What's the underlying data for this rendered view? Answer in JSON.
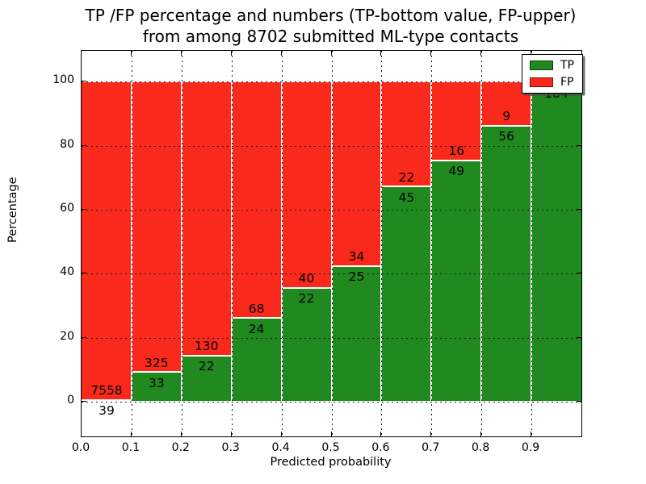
{
  "title": {
    "line1": "TP /FP percentage and numbers (TP-bottom value, FP-upper)",
    "line2": "from among 8702 submitted ML-type contacts"
  },
  "axes": {
    "xlabel": "Predicted probability",
    "ylabel": "Percentage"
  },
  "legend": {
    "items": [
      {
        "label": "TP",
        "color_key": "tp"
      },
      {
        "label": "FP",
        "color_key": "fp"
      }
    ]
  },
  "colors": {
    "tp": "#208920",
    "fp": "#f92a1c",
    "grid": "#1a1a1a",
    "text": "#000000",
    "background": "#ffffff"
  },
  "chart_data": {
    "type": "bar",
    "stacked": true,
    "title": "TP /FP percentage and numbers (TP-bottom value, FP-upper) from among 8702 submitted ML-type contacts",
    "xlabel": "Predicted probability",
    "ylabel": "Percentage",
    "total_contacts": 8702,
    "grid": true,
    "legend_position": "upper right",
    "x_ticks": [
      "0.0",
      "0.1",
      "0.2",
      "0.3",
      "0.4",
      "0.5",
      "0.6",
      "0.7",
      "0.8",
      "0.9"
    ],
    "y_ticks": [
      "0",
      "20",
      "40",
      "60",
      "80",
      "100"
    ],
    "y_tick_values": [
      0,
      20,
      40,
      60,
      80,
      100
    ],
    "xlim": [
      0.0,
      1.0
    ],
    "ylim": [
      -10.8,
      109.6
    ],
    "bin_width": 0.1,
    "series": [
      {
        "name": "TP",
        "color": "#208920",
        "position": "bottom"
      },
      {
        "name": "FP",
        "color": "#f92a1c",
        "position": "top"
      }
    ],
    "bars": [
      {
        "x0": 0.0,
        "x1": 0.1,
        "tp": 39,
        "fp": 7558,
        "tp_pct": 0.51,
        "fp_pct": 99.49,
        "tp_label": "39",
        "fp_label": "7558"
      },
      {
        "x0": 0.1,
        "x1": 0.2,
        "tp": 33,
        "fp": 325,
        "tp_pct": 9.22,
        "fp_pct": 90.78,
        "tp_label": "33",
        "fp_label": "325"
      },
      {
        "x0": 0.2,
        "x1": 0.3,
        "tp": 22,
        "fp": 130,
        "tp_pct": 14.47,
        "fp_pct": 85.53,
        "tp_label": "22",
        "fp_label": "130"
      },
      {
        "x0": 0.3,
        "x1": 0.4,
        "tp": 24,
        "fp": 68,
        "tp_pct": 26.09,
        "fp_pct": 73.91,
        "tp_label": "24",
        "fp_label": "68"
      },
      {
        "x0": 0.4,
        "x1": 0.5,
        "tp": 22,
        "fp": 40,
        "tp_pct": 35.48,
        "fp_pct": 64.52,
        "tp_label": "22",
        "fp_label": "40"
      },
      {
        "x0": 0.5,
        "x1": 0.6,
        "tp": 25,
        "fp": 34,
        "tp_pct": 42.37,
        "fp_pct": 57.63,
        "tp_label": "25",
        "fp_label": "34"
      },
      {
        "x0": 0.6,
        "x1": 0.7,
        "tp": 45,
        "fp": 22,
        "tp_pct": 67.16,
        "fp_pct": 32.84,
        "tp_label": "45",
        "fp_label": "22"
      },
      {
        "x0": 0.7,
        "x1": 0.8,
        "tp": 49,
        "fp": 16,
        "tp_pct": 75.38,
        "fp_pct": 24.62,
        "tp_label": "49",
        "fp_label": "16"
      },
      {
        "x0": 0.8,
        "x1": 0.9,
        "tp": 56,
        "fp": 9,
        "tp_pct": 86.15,
        "fp_pct": 13.85,
        "tp_label": "56",
        "fp_label": "9"
      },
      {
        "x0": 0.9,
        "x1": 1.0,
        "tp": 184,
        "fp": null,
        "tp_pct": 99.46,
        "fp_pct": 0.54,
        "tp_label": "184",
        "fp_label": ""
      }
    ]
  }
}
